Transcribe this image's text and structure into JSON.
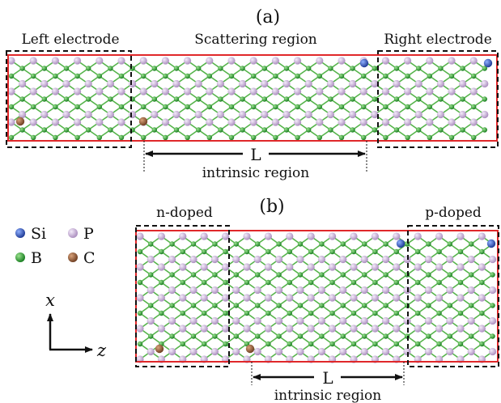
{
  "panel_a": {
    "label": "(a)",
    "left_box_label": "Left electrode",
    "center_label": "Scattering region",
    "right_box_label": "Right electrode",
    "length_label": "L",
    "region_label": "intrinsic region"
  },
  "panel_b": {
    "label": "(b)",
    "left_box_label": "n-doped",
    "right_box_label": "p-doped",
    "length_label": "L",
    "region_label": "intrinsic region"
  },
  "legend": {
    "items": [
      {
        "symbol": "Si",
        "color": "#2a4fb0"
      },
      {
        "symbol": "P",
        "color": "#c7a6d8"
      },
      {
        "symbol": "B",
        "color": "#1f9a2a"
      },
      {
        "symbol": "C",
        "color": "#8a5230"
      }
    ]
  },
  "axes": {
    "x_label": "x",
    "z_label": "z"
  },
  "colors": {
    "cell_border": "#e0282a",
    "box_dash": "#111111",
    "bond": "#55b44a",
    "phosphorus": "#c7a6d8",
    "boron": "#1f9a2a",
    "silicon": "#2a4fb0",
    "carbon": "#8a5230"
  }
}
